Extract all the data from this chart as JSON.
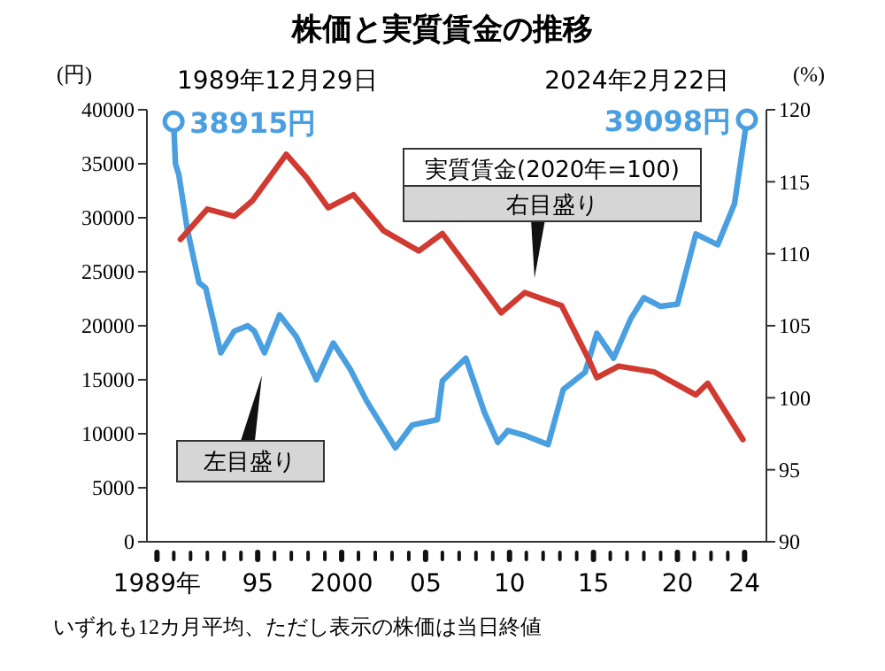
{
  "chart_data": {
    "type": "line",
    "title": "株価と実質賃金の推移",
    "ylabel": "(円)",
    "y2label": "(%)",
    "xlim": [
      1988.4,
      2025.3
    ],
    "xticks": [
      {
        "value": 1989,
        "label": "1989年"
      },
      {
        "value": 1990,
        "label": null
      },
      {
        "value": 1991,
        "label": null
      },
      {
        "value": 1992,
        "label": null
      },
      {
        "value": 1993,
        "label": null
      },
      {
        "value": 1994,
        "label": null
      },
      {
        "value": 1995,
        "label": "95"
      },
      {
        "value": 1996,
        "label": null
      },
      {
        "value": 1997,
        "label": null
      },
      {
        "value": 1998,
        "label": null
      },
      {
        "value": 1999,
        "label": null
      },
      {
        "value": 2000,
        "label": "2000"
      },
      {
        "value": 2001,
        "label": null
      },
      {
        "value": 2002,
        "label": null
      },
      {
        "value": 2003,
        "label": null
      },
      {
        "value": 2004,
        "label": null
      },
      {
        "value": 2005,
        "label": "05"
      },
      {
        "value": 2006,
        "label": null
      },
      {
        "value": 2007,
        "label": null
      },
      {
        "value": 2008,
        "label": null
      },
      {
        "value": 2009,
        "label": null
      },
      {
        "value": 2010,
        "label": "10"
      },
      {
        "value": 2011,
        "label": null
      },
      {
        "value": 2012,
        "label": null
      },
      {
        "value": 2013,
        "label": null
      },
      {
        "value": 2014,
        "label": null
      },
      {
        "value": 2015,
        "label": "15"
      },
      {
        "value": 2016,
        "label": null
      },
      {
        "value": 2017,
        "label": null
      },
      {
        "value": 2018,
        "label": null
      },
      {
        "value": 2019,
        "label": null
      },
      {
        "value": 2020,
        "label": "20"
      },
      {
        "value": 2021,
        "label": null
      },
      {
        "value": 2022,
        "label": null
      },
      {
        "value": 2023,
        "label": null
      },
      {
        "value": 2024,
        "label": "24"
      }
    ],
    "ylim": [
      0,
      40000
    ],
    "yticks": [
      0,
      5000,
      10000,
      15000,
      20000,
      25000,
      30000,
      35000,
      40000
    ],
    "y2lim": [
      90,
      120
    ],
    "y2ticks": [
      90,
      95,
      100,
      105,
      110,
      115,
      120
    ],
    "series": [
      {
        "color": "#4a9fe0",
        "x": [
          1989.99,
          1990.1,
          1990.3,
          1990.8,
          1991.5,
          1991.9,
          1992.8,
          1993.6,
          1994.4,
          1994.8,
          1995.4,
          1996.3,
          1997.3,
          1998.5,
          1999.5,
          2000.5,
          2001.5,
          2003.2,
          2004.2,
          2005.7,
          2006.0,
          2007.4,
          2008.5,
          2009.3,
          2009.9,
          2011.0,
          2012.3,
          2013.2,
          2014.5,
          2015.2,
          2016.2,
          2017.2,
          2018.0,
          2019.0,
          2020.0,
          2021.1,
          2022.4,
          2023.4,
          2024.14
        ],
        "values": [
          38915,
          35000,
          34000,
          29000,
          24000,
          23500,
          17500,
          19500,
          20000,
          19500,
          17500,
          21000,
          19000,
          15000,
          18400,
          16000,
          13000,
          8700,
          10800,
          11300,
          14900,
          17000,
          12000,
          9200,
          10300,
          9800,
          9000,
          14100,
          15700,
          19300,
          17000,
          20600,
          22600,
          21800,
          22000,
          28500,
          27500,
          31300,
          39098
        ]
      },
      {
        "name": "実質賃金(2020年=100)",
        "color": "#d03a30",
        "axis": "y2",
        "x": [
          1990.4,
          1992.0,
          1993.6,
          1994.7,
          1996.7,
          1997.9,
          1999.2,
          2000.7,
          2002.5,
          2004.6,
          2006.0,
          2007.8,
          2009.5,
          2010.9,
          2013.1,
          2014.7,
          2015.2,
          2016.5,
          2018.6,
          2021.1,
          2021.8,
          2023.9
        ],
        "values": [
          111.0,
          113.1,
          112.6,
          113.7,
          116.9,
          115.3,
          113.2,
          114.1,
          111.6,
          110.2,
          111.4,
          108.6,
          105.9,
          107.3,
          106.4,
          102.7,
          101.4,
          102.2,
          101.8,
          100.2,
          101.0,
          97.1
        ]
      }
    ],
    "annotations": [
      "1989年12月29日",
      "2024年2月22日",
      {
        "text": "38915円",
        "x": 1989.99,
        "y": 38915
      },
      {
        "text": "39098円",
        "x": 2024.14,
        "y": 39098
      },
      "右目盛り",
      "左目盛り",
      "いずれも12カ月平均、ただし表示の株価は当日終値"
    ]
  }
}
